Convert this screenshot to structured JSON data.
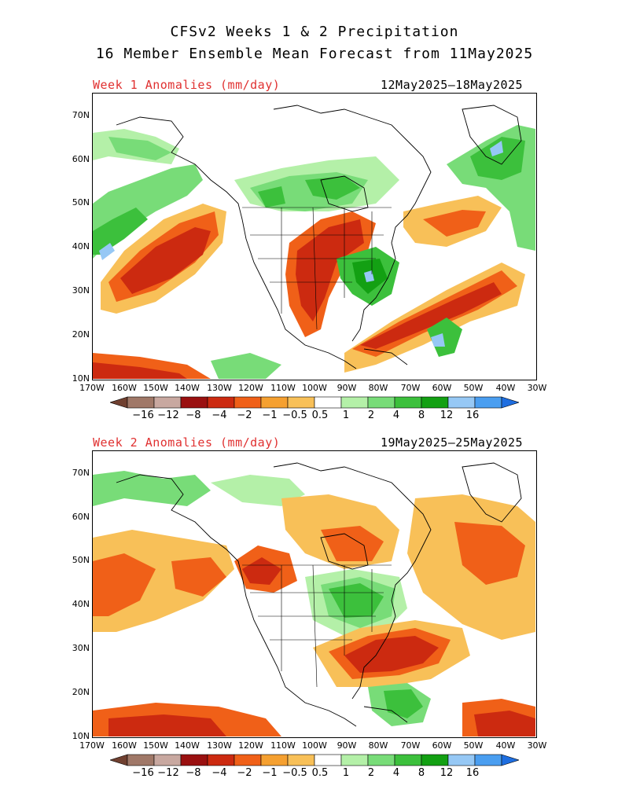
{
  "title_line1": "CFSv2 Weeks 1 & 2 Precipitation",
  "title_line2": "16 Member Ensemble Mean Forecast from 11May2025",
  "panels": [
    {
      "label": "Week 1 Anomalies (mm/day)",
      "dates": "12May2025–18May2025"
    },
    {
      "label": "Week 2 Anomalies (mm/day)",
      "dates": "19May2025–25May2025"
    }
  ],
  "lat_ticks": [
    "70N",
    "60N",
    "50N",
    "40N",
    "30N",
    "20N",
    "10N"
  ],
  "lon_ticks": [
    "170W",
    "160W",
    "150W",
    "140W",
    "130W",
    "120W",
    "110W",
    "100W",
    "90W",
    "80W",
    "70W",
    "60W",
    "50W",
    "40W",
    "30W"
  ],
  "legend": {
    "labels": [
      "−16",
      "−12",
      "−8",
      "−4",
      "−2",
      "−1",
      "−0.5",
      "0.5",
      "1",
      "2",
      "4",
      "8",
      "12",
      "16"
    ],
    "colors": [
      "#704030",
      "#a07868",
      "#c8a8a0",
      "#9a1010",
      "#cc2a10",
      "#f06018",
      "#f5a030",
      "#f8c058",
      "#ffffff",
      "#b4f0a8",
      "#78dc78",
      "#3cc03c",
      "#13a013",
      "#96c8f5",
      "#4a9ef0",
      "#1e6ee0"
    ]
  },
  "palette": {
    "dry3": "#cc2a10",
    "dry2": "#f06018",
    "dry1": "#f8c058",
    "wet1": "#b4f0a8",
    "wet2": "#78dc78",
    "wet3": "#3cc03c",
    "wet4": "#13a013",
    "wet5": "#96c8f5"
  }
}
